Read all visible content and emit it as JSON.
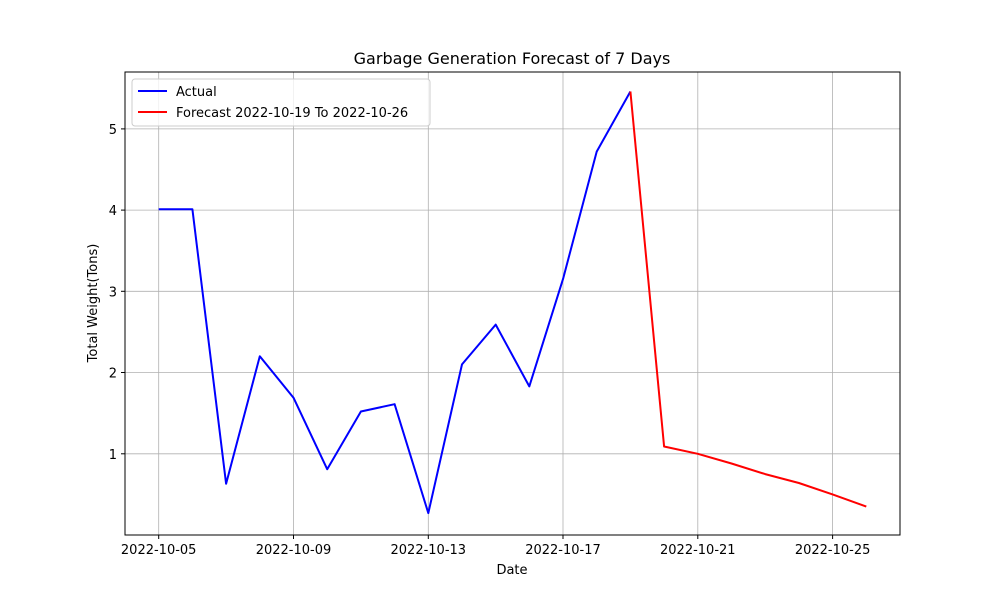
{
  "chart_data": {
    "type": "line",
    "title": "Garbage Generation Forecast of 7 Days",
    "xlabel": "Date",
    "ylabel": "Total Weight(Tons)",
    "x_type": "date",
    "xlim": [
      "2022-10-04",
      "2022-10-27"
    ],
    "ylim": [
      0,
      5.7
    ],
    "x_ticks": [
      "2022-10-05",
      "2022-10-09",
      "2022-10-13",
      "2022-10-17",
      "2022-10-21",
      "2022-10-25"
    ],
    "y_ticks": [
      1,
      2,
      3,
      4,
      5
    ],
    "grid": true,
    "legend_position": "top-left",
    "series": [
      {
        "name": "Actual",
        "color": "#0000ff",
        "x": [
          "2022-10-05",
          "2022-10-06",
          "2022-10-07",
          "2022-10-08",
          "2022-10-09",
          "2022-10-10",
          "2022-10-11",
          "2022-10-12",
          "2022-10-13",
          "2022-10-14",
          "2022-10-15",
          "2022-10-16",
          "2022-10-17",
          "2022-10-18",
          "2022-10-19"
        ],
        "y": [
          4.01,
          4.01,
          0.63,
          2.2,
          1.69,
          0.81,
          1.52,
          1.61,
          0.27,
          2.1,
          2.59,
          1.83,
          3.15,
          4.72,
          5.46
        ]
      },
      {
        "name": "Forecast 2022-10-19 To 2022-10-26",
        "color": "#ff0000",
        "x": [
          "2022-10-19",
          "2022-10-20",
          "2022-10-21",
          "2022-10-22",
          "2022-10-23",
          "2022-10-24",
          "2022-10-25",
          "2022-10-26"
        ],
        "y": [
          5.46,
          1.09,
          1.0,
          0.88,
          0.75,
          0.64,
          0.5,
          0.35
        ]
      }
    ]
  }
}
